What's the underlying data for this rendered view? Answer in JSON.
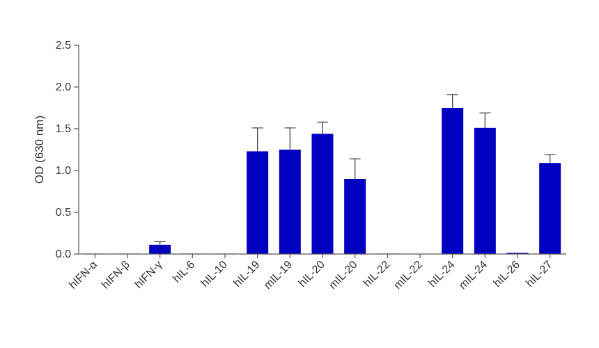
{
  "chart_data": {
    "type": "bar",
    "categories": [
      "hIFN-α",
      "hIFN-β",
      "hIFN-γ",
      "hIL-6",
      "hIL-10",
      "hIL-19",
      "mIL-19",
      "hIL-20",
      "mIL-20",
      "hIL-22",
      "mIL-22",
      "hIL-24",
      "mIL-24",
      "hIL-26",
      "hIL-27"
    ],
    "values": [
      0.005,
      0.005,
      0.11,
      0.005,
      0.005,
      1.23,
      1.25,
      1.44,
      0.9,
      0.005,
      0.0,
      1.75,
      1.51,
      0.015,
      1.09
    ],
    "errors": [
      0.0,
      0.0,
      0.04,
      0.0,
      0.0,
      0.28,
      0.26,
      0.14,
      0.24,
      0.0,
      0.0,
      0.16,
      0.18,
      0.0,
      0.1
    ],
    "title": "",
    "xlabel": "",
    "ylabel": "OD (630 nm)",
    "ylim": [
      0,
      2.5
    ],
    "yticks": [
      "0.0",
      "0.5",
      "1.0",
      "1.5",
      "2.0",
      "2.5"
    ],
    "bar_color": "#0000c0",
    "axis_color": "#555555",
    "grid": false
  }
}
